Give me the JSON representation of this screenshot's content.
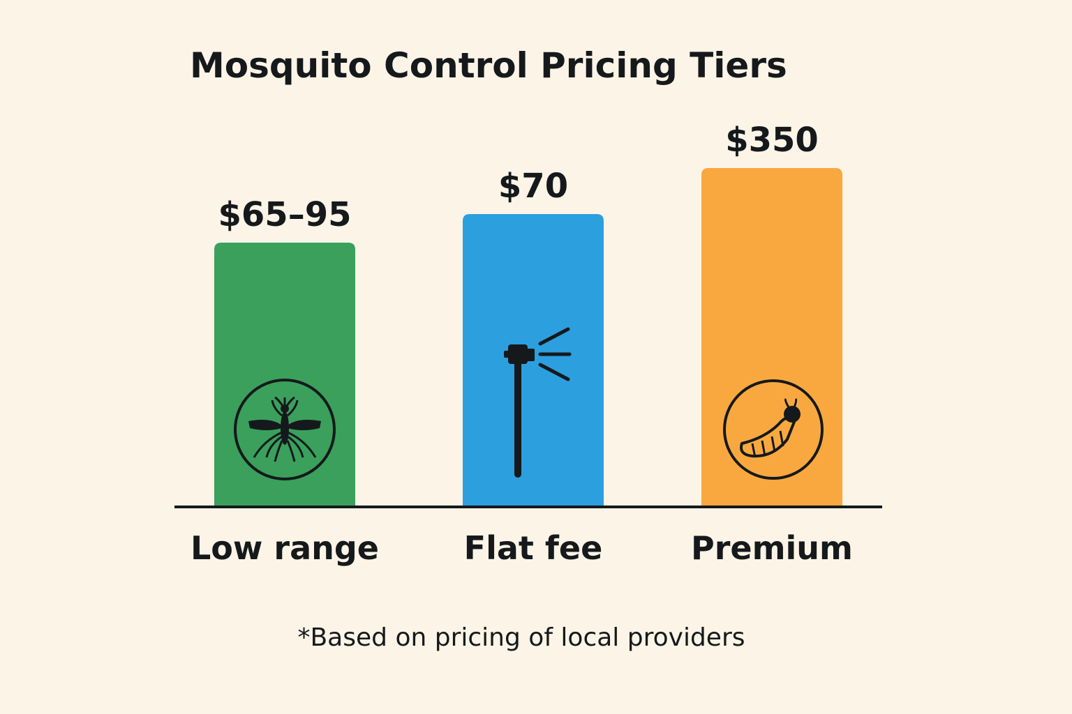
{
  "chart_data": {
    "type": "bar",
    "title": "Mosquito Control Pricing Tiers",
    "xlabel": "",
    "ylabel": "",
    "categories": [
      "Low range",
      "Flat fee",
      "Premium"
    ],
    "value_labels": [
      "$65–95",
      "$70",
      "$350"
    ],
    "icons": [
      "mosquito-icon",
      "sprayer-icon",
      "larva-icon"
    ],
    "colors": [
      "#3aa05c",
      "#2c9fdf",
      "#f9a83f"
    ],
    "series": [
      {
        "values": [
          65,
          70,
          350
        ]
      }
    ],
    "value_ranges": [
      [
        65,
        95
      ],
      null,
      null
    ],
    "grid": false,
    "legend": "none",
    "footnote": "*Based on pricing of local providers"
  }
}
